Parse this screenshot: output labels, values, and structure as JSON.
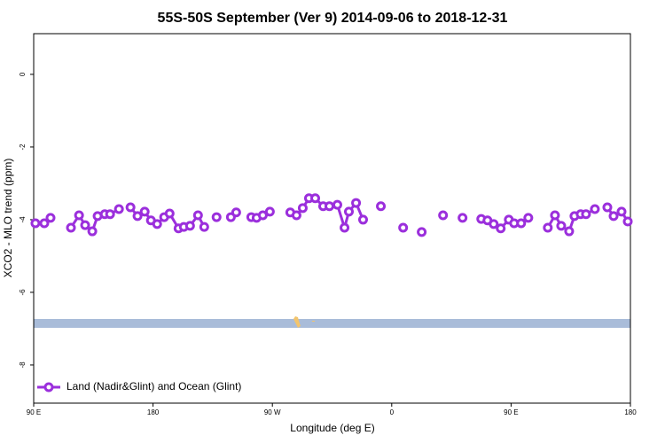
{
  "chart_data": {
    "type": "line",
    "title": "55S-50S September (Ver 9)   2014-09-06 to 2018-12-31",
    "x_label": "Longitude (deg E)",
    "y_label": "XCO2 - MLO trend (ppm)",
    "xlim": [
      90,
      540
    ],
    "xticks": [
      {
        "value": 90,
        "label": "90 E"
      },
      180,
      {
        "value": 270,
        "label": "90 W"
      },
      {
        "value": 360,
        "label": "0"
      },
      {
        "value": 450,
        "label": "90 E"
      },
      {
        "value": 540,
        "label": "180"
      }
    ],
    "ylim": [
      -9.05,
      1.12
    ],
    "yticks": [
      0,
      -2,
      -4,
      -6,
      -8
    ],
    "legend": "bottom-left",
    "series": [
      {
        "name": "Land (Nadir&Glint) and Ocean (Glint)",
        "color": "#9b2fdc",
        "x": [
          91.3,
          98.0,
          102.7,
          null,
          118.1,
          124.2,
          128.8,
          134.2,
          138.2,
          143.6,
          147.6,
          154.3,
          null,
          163.0,
          168.3,
          173.7,
          178.4,
          183.1,
          188.4,
          192.5,
          199.2,
          203.2,
          207.9,
          213.9,
          218.6,
          null,
          227.9,
          null,
          238.7,
          242.7,
          null,
          254.1,
          258.1,
          262.8,
          268.1,
          null,
          283.5,
          288.2,
          292.9,
          297.6,
          302.3,
          308.3,
          313.0,
          319.0,
          324.4,
          327.7,
          333.1,
          338.4,
          null,
          351.8,
          null,
          368.6,
          null,
          382.6,
          null,
          398.7,
          null,
          413.4,
          null,
          427.5,
          432.2,
          436.9,
          442.2,
          448.3,
          452.3,
          457.6,
          463.0,
          null,
          477.7,
          483.1,
          487.8,
          493.8,
          497.8,
          502.5,
          506.5,
          513.2,
          null,
          522.6,
          527.3,
          533.3,
          538.0
        ],
        "values": [
          -4.1,
          -4.1,
          -3.95,
          null,
          -4.22,
          -3.88,
          -4.15,
          -4.32,
          -3.9,
          -3.85,
          -3.85,
          -3.71,
          null,
          -3.66,
          -3.9,
          -3.78,
          -4.02,
          -4.12,
          -3.93,
          -3.83,
          -4.24,
          -4.2,
          -4.17,
          -3.88,
          -4.2,
          null,
          -3.93,
          null,
          -3.93,
          -3.8,
          null,
          -3.93,
          -3.95,
          -3.88,
          -3.78,
          null,
          -3.8,
          -3.88,
          -3.68,
          -3.41,
          -3.41,
          -3.63,
          -3.63,
          -3.59,
          -4.22,
          -3.78,
          -3.54,
          -4.0,
          null,
          -3.63,
          null,
          -4.22,
          null,
          -4.34,
          null,
          -3.88,
          null,
          -3.95,
          null,
          -3.98,
          -4.02,
          -4.12,
          -4.24,
          -4.0,
          -4.1,
          -4.1,
          -3.95,
          null,
          -4.22,
          -3.88,
          -4.17,
          -4.32,
          -3.9,
          -3.85,
          -3.85,
          -3.71,
          null,
          -3.66,
          -3.9,
          -3.78,
          -4.05
        ]
      }
    ]
  }
}
